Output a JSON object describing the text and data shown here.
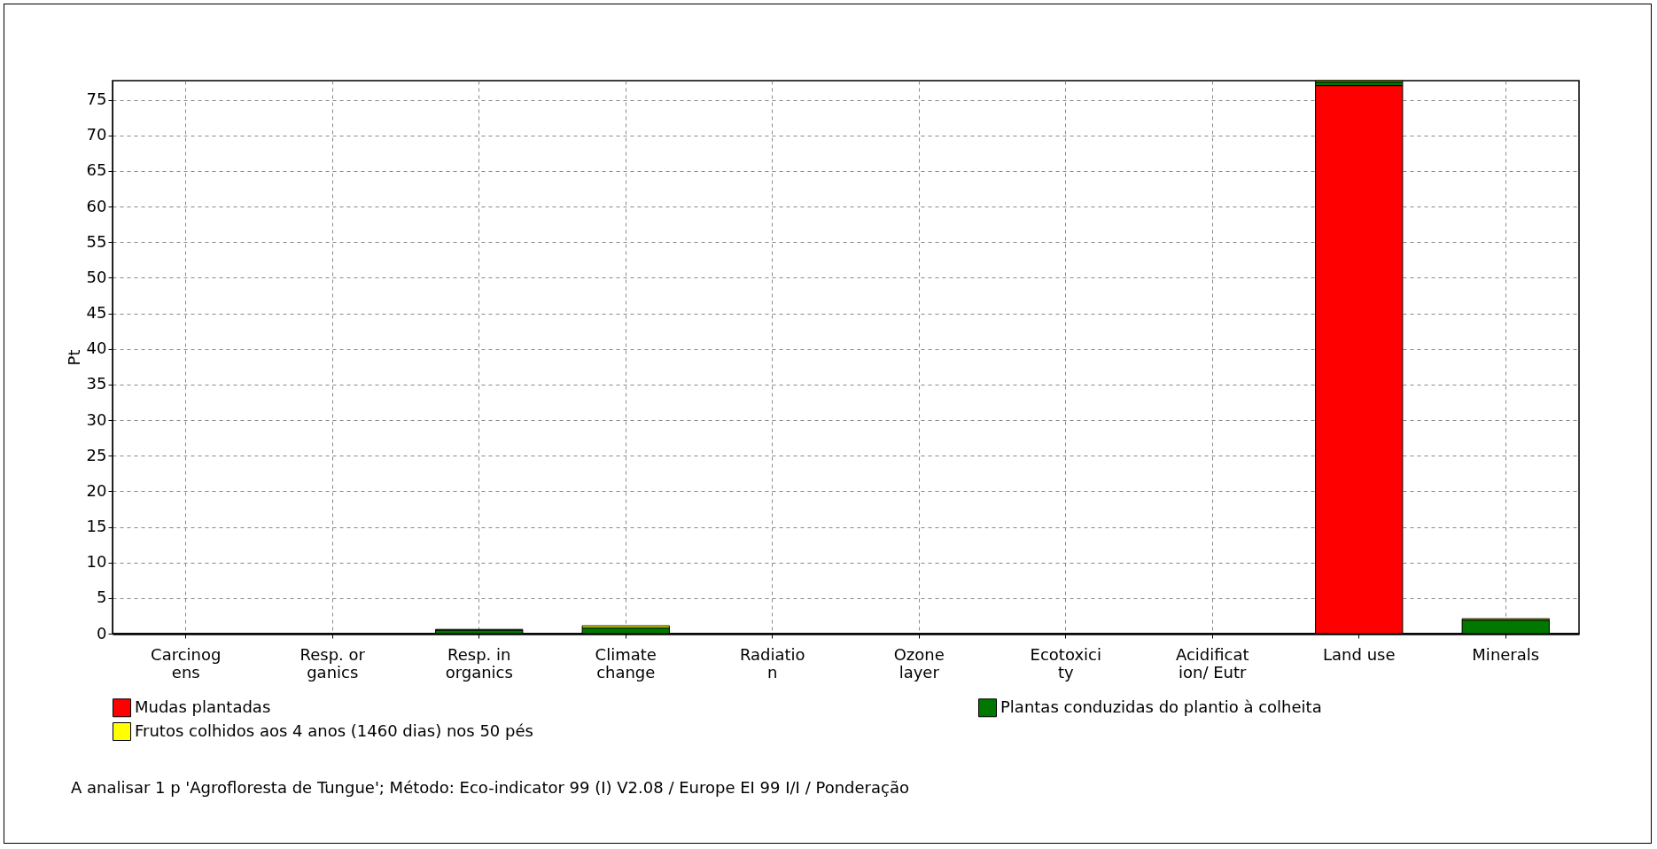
{
  "chart_data": {
    "type": "bar",
    "ylabel": "Pt",
    "stacked": true,
    "categories": [
      "Carcinog\nens",
      "Resp. or\nganics",
      "Resp. in\norganics",
      "Climate\nchange",
      "Radiatio\nn",
      "Ozone\nlayer",
      "Ecotoxici\nty",
      "Acidificat\nion/ Eutr",
      "Land use",
      "Minerals"
    ],
    "series": [
      {
        "name": "Mudas plantadas",
        "color": "#ff0000",
        "values": [
          null,
          null,
          null,
          null,
          null,
          null,
          null,
          null,
          77.0,
          null
        ]
      },
      {
        "name": "Plantas conduzidas do plantio à colheita",
        "color": "#007800",
        "values": [
          null,
          null,
          0.5,
          0.8,
          null,
          null,
          null,
          null,
          0.5,
          1.9
        ]
      },
      {
        "name": "Frutos colhidos aos 4 anos (1460 dias) nos 50 pés",
        "color": "#ffff00",
        "values": [
          null,
          null,
          0.1,
          0.3,
          null,
          null,
          null,
          null,
          0.2,
          0.2
        ]
      }
    ],
    "ylim": [
      0,
      77.7
    ],
    "yticks": [
      0,
      5,
      10,
      15,
      20,
      25,
      30,
      35,
      40,
      45,
      50,
      55,
      60,
      65,
      70,
      75
    ],
    "grid": true,
    "legend": "bottom",
    "annotations": [
      "A analisar 1 p 'Agrofloresta de Tungue';  Método: Eco-indicator 99 (I) V2.08 / Europe EI 99 I/I / Ponderação"
    ]
  }
}
